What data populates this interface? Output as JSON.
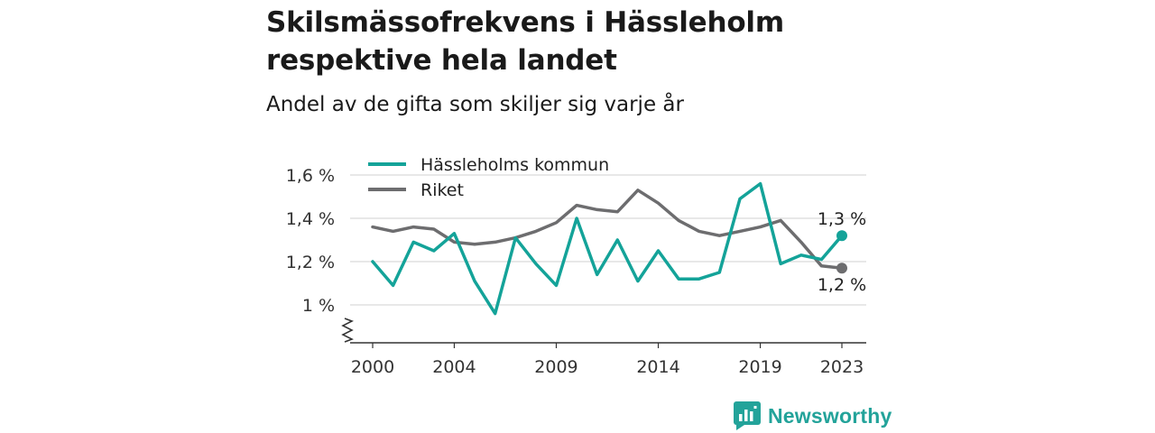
{
  "title": "Skilsmässofrekvens i Hässleholm respektive hela landet",
  "subtitle": "Andel av de gifta som skiljer sig varje år",
  "brand": {
    "name": "Newsworthy",
    "icon": "newsworthy-logo-icon"
  },
  "colors": {
    "primary": "#14a399",
    "secondary": "#6d6d6f",
    "grid": "#d9d9d9",
    "axis": "#333333"
  },
  "chart_data": {
    "type": "line",
    "title": "Skilsmässofrekvens i Hässleholm respektive hela landet",
    "subtitle": "Andel av de gifta som skiljer sig varje år",
    "xlabel": "",
    "ylabel": "",
    "x": [
      2000,
      2001,
      2002,
      2003,
      2004,
      2005,
      2006,
      2007,
      2008,
      2009,
      2010,
      2011,
      2012,
      2013,
      2014,
      2015,
      2016,
      2017,
      2018,
      2019,
      2020,
      2021,
      2022,
      2023
    ],
    "x_ticks": [
      "2000",
      "2004",
      "2009",
      "2014",
      "2019",
      "2023"
    ],
    "y_ticks": [
      "1 %",
      "1,2 %",
      "1,4 %",
      "1,6 %"
    ],
    "y_tick_values": [
      1.0,
      1.2,
      1.4,
      1.6
    ],
    "ylim": [
      0.85,
      1.65
    ],
    "y_axis_break": true,
    "grid": true,
    "legend_position": "top-left",
    "series": [
      {
        "name": "Hässleholms kommun",
        "color": "#14a399",
        "values": [
          1.2,
          1.09,
          1.29,
          1.25,
          1.33,
          1.11,
          0.96,
          1.31,
          1.19,
          1.09,
          1.4,
          1.14,
          1.3,
          1.11,
          1.25,
          1.12,
          1.12,
          1.15,
          1.49,
          1.56,
          1.19,
          1.23,
          1.21,
          1.32
        ],
        "end_label": "1,3 %"
      },
      {
        "name": "Riket",
        "color": "#6d6d6f",
        "values": [
          1.36,
          1.34,
          1.36,
          1.35,
          1.29,
          1.28,
          1.29,
          1.31,
          1.34,
          1.38,
          1.46,
          1.44,
          1.43,
          1.53,
          1.47,
          1.39,
          1.34,
          1.32,
          1.34,
          1.36,
          1.39,
          1.29,
          1.18,
          1.17
        ],
        "end_label": "1,2 %"
      }
    ]
  }
}
